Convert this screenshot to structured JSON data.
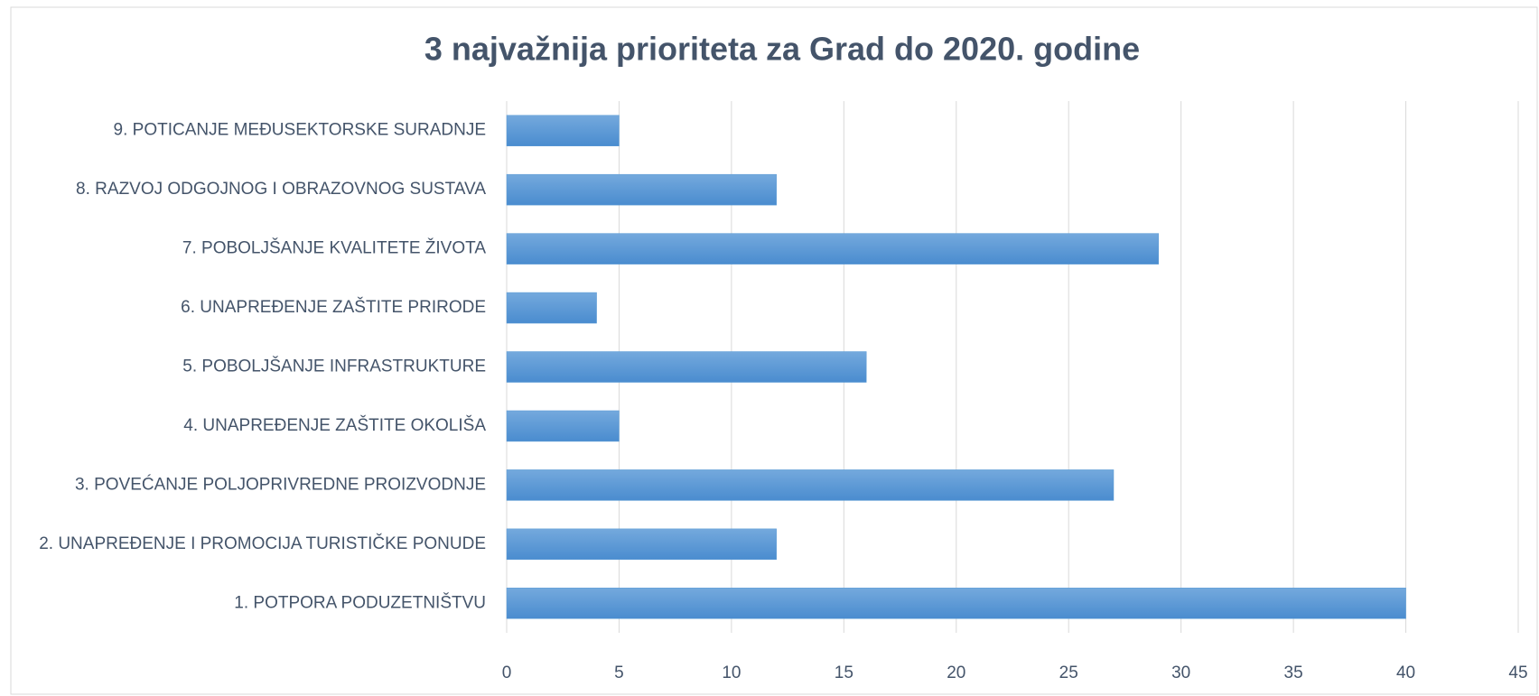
{
  "chart_data": {
    "type": "bar",
    "orientation": "horizontal",
    "title": "3 najvažnija prioriteta za Grad do 2020. godine",
    "categories": [
      "1. POTPORA PODUZETNIŠTVU",
      "2. UNAPREĐENJE I PROMOCIJA TURISTIČKE PONUDE",
      "3. POVEĆANJE POLJOPRIVREDNE PROIZVODNJE",
      "4. UNAPREĐENJE ZAŠTITE OKOLIŠA",
      "5. POBOLJŠANJE INFRASTRUKTURE",
      "6. UNAPREĐENJE ZAŠTITE PRIRODE",
      "7. POBOLJŠANJE KVALITETE ŽIVOTA",
      "8. RAZVOJ ODGOJNOG I OBRAZOVNOG SUSTAVA",
      "9. POTICANJE MEĐUSEKTORSKE SURADNJE"
    ],
    "values": [
      40,
      12,
      27,
      5,
      16,
      4,
      29,
      12,
      5
    ],
    "color": "#5b9bd5",
    "xlim": [
      0,
      45
    ],
    "xticks": [
      0,
      5,
      10,
      15,
      20,
      25,
      30,
      35,
      40,
      45
    ],
    "grid": true
  }
}
